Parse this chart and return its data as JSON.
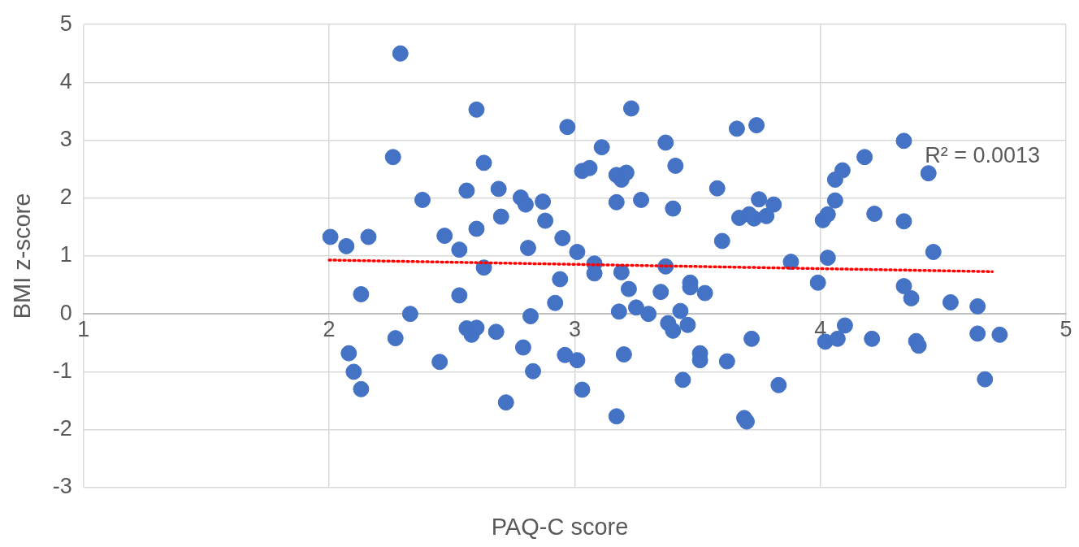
{
  "chart_data": {
    "type": "scatter",
    "xlabel": "PAQ-C score",
    "ylabel": "BMI z-score",
    "xlim": [
      1,
      5
    ],
    "ylim": [
      -3,
      5
    ],
    "xticks": [
      1,
      2,
      3,
      4,
      5
    ],
    "yticks": [
      -3,
      -2,
      -1,
      0,
      1,
      2,
      3,
      4,
      5
    ],
    "grid": true,
    "series": [
      {
        "type": "scatter",
        "marker": "circle",
        "color": "#4472c4",
        "x": [
          2.005,
          2.07,
          2.13,
          2.08,
          2.1,
          2.13,
          2.16,
          2.26,
          2.27,
          2.29,
          2.33,
          2.38,
          2.45,
          2.47,
          2.53,
          2.53,
          2.56,
          2.56,
          2.58,
          2.6,
          2.6,
          2.6,
          2.63,
          2.63,
          2.68,
          2.69,
          2.7,
          2.72,
          2.78,
          2.79,
          2.8,
          2.81,
          2.82,
          2.83,
          2.87,
          2.88,
          2.92,
          2.94,
          2.95,
          2.96,
          2.97,
          3.01,
          3.01,
          3.03,
          3.03,
          3.06,
          3.08,
          3.08,
          3.11,
          3.17,
          3.17,
          3.18,
          3.17,
          3.19,
          3.21,
          3.19,
          3.2,
          3.22,
          3.23,
          3.25,
          3.27,
          3.3,
          3.35,
          3.37,
          3.37,
          3.38,
          3.4,
          3.41,
          3.4,
          3.43,
          3.44,
          3.46,
          3.47,
          3.47,
          3.51,
          3.51,
          3.53,
          3.58,
          3.6,
          3.62,
          3.66,
          3.67,
          3.69,
          3.7,
          3.71,
          3.72,
          3.73,
          3.74,
          3.75,
          3.78,
          3.81,
          3.83,
          3.88,
          3.99,
          4.01,
          4.02,
          4.03,
          4.03,
          4.06,
          4.06,
          4.07,
          4.09,
          4.1,
          4.18,
          4.21,
          4.22,
          4.34,
          4.34,
          4.34,
          4.37,
          4.39,
          4.4,
          4.44,
          4.46,
          4.53,
          4.64,
          4.64,
          4.67,
          4.73
        ],
        "values": [
          1.33,
          1.17,
          0.34,
          -0.68,
          -1.0,
          -1.3,
          1.33,
          2.71,
          -0.42,
          4.5,
          0.0,
          1.97,
          -0.83,
          1.35,
          1.11,
          0.32,
          2.13,
          -0.25,
          -0.36,
          -0.24,
          1.47,
          3.53,
          2.61,
          0.8,
          -0.31,
          2.16,
          1.68,
          -1.53,
          2.01,
          -0.58,
          1.89,
          1.14,
          -0.04,
          -0.99,
          1.94,
          1.61,
          0.19,
          0.6,
          1.31,
          -0.71,
          3.23,
          1.07,
          -0.8,
          2.47,
          -1.31,
          2.52,
          0.87,
          0.7,
          2.88,
          1.93,
          2.4,
          0.04,
          -1.77,
          2.32,
          2.44,
          0.72,
          -0.7,
          0.43,
          3.55,
          0.11,
          1.97,
          0.0,
          0.38,
          0.82,
          2.96,
          -0.16,
          -0.29,
          2.56,
          1.82,
          0.05,
          -1.14,
          -0.19,
          0.54,
          0.46,
          -0.68,
          -0.8,
          0.36,
          2.17,
          1.26,
          -0.82,
          3.2,
          1.66,
          -1.8,
          -1.86,
          1.72,
          -0.43,
          1.65,
          3.26,
          1.98,
          1.69,
          1.89,
          -1.23,
          0.9,
          0.54,
          1.62,
          -0.48,
          0.97,
          1.72,
          1.96,
          2.32,
          -0.43,
          2.48,
          -0.2,
          2.71,
          -0.43,
          1.73,
          0.48,
          2.99,
          1.6,
          0.27,
          -0.47,
          -0.55,
          2.43,
          1.07,
          0.2,
          0.13,
          -0.34,
          -1.13,
          -0.36
        ]
      },
      {
        "type": "line",
        "color": "#ff0000",
        "line_style": "dotted",
        "x": [
          2,
          4.7
        ],
        "values": [
          0.93,
          0.73
        ]
      }
    ],
    "annotations": [
      "R² = 0.0013"
    ]
  }
}
